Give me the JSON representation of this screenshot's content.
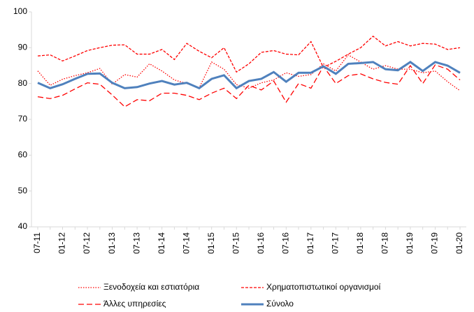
{
  "chart_data": {
    "type": "line",
    "categories": [
      "07-11",
      null,
      "01-12",
      null,
      "07-12",
      null,
      "01-13",
      null,
      "07-13",
      null,
      "01-14",
      null,
      "07-14",
      null,
      "01-15",
      null,
      "07-15",
      null,
      "01-16",
      null,
      "07-16",
      null,
      "01-17",
      null,
      "07-17",
      null,
      "01-18",
      null,
      "07-18",
      null,
      "01-19",
      null,
      "07-19",
      null,
      "01-20"
    ],
    "series": [
      {
        "name": "Ξενοδοχεία και εστιατόρια",
        "color": "#ff0000",
        "style": "dotted",
        "values": [
          83.5,
          79.5,
          81.2,
          82.2,
          83.0,
          84.2,
          79.8,
          82.5,
          81.8,
          85.5,
          83.5,
          81.0,
          80.0,
          78.8,
          86.0,
          84.0,
          79.7,
          78.7,
          80.2,
          81.0,
          83.0,
          82.0,
          82.5,
          85.5,
          83.5,
          88.0,
          86.0,
          84.0,
          85.0,
          84.0,
          84.0,
          83.0,
          83.5,
          80.5,
          78.0
        ]
      },
      {
        "name": "Χρηματοπιστωτικοί οργανισμοί",
        "color": "#ff0000",
        "style": "dashed",
        "values": [
          87.7,
          88.0,
          86.3,
          87.7,
          89.2,
          90.0,
          90.7,
          90.8,
          88.2,
          88.2,
          89.5,
          86.7,
          91.2,
          89.0,
          87.2,
          90.0,
          83.2,
          85.5,
          88.7,
          89.2,
          88.2,
          88.0,
          91.7,
          84.5,
          86.2,
          88.2,
          90.0,
          93.2,
          90.5,
          91.7,
          90.5,
          91.2,
          91.0,
          89.5,
          90.0
        ]
      },
      {
        "name": "Άλλες υπηρεσίες",
        "color": "#ff0000",
        "style": "longdash",
        "values": [
          76.3,
          75.8,
          76.7,
          78.5,
          80.2,
          79.8,
          76.8,
          73.5,
          75.5,
          75.2,
          77.3,
          77.3,
          76.7,
          75.5,
          77.3,
          78.7,
          75.8,
          79.5,
          78.2,
          80.7,
          74.8,
          80.0,
          78.7,
          84.8,
          80.0,
          82.2,
          82.7,
          81.3,
          80.3,
          79.8,
          85.0,
          80.0,
          85.2,
          84.0,
          81.0
        ]
      },
      {
        "name": "Σύνολο",
        "color": "#4f81bd",
        "style": "solid",
        "values": [
          80.2,
          78.7,
          79.8,
          81.3,
          82.7,
          82.8,
          80.2,
          78.7,
          79.0,
          80.0,
          80.7,
          79.7,
          80.2,
          78.7,
          81.3,
          82.3,
          78.7,
          80.7,
          81.3,
          83.2,
          80.5,
          83.0,
          83.0,
          84.8,
          82.7,
          85.5,
          85.7,
          86.0,
          84.0,
          83.7,
          86.0,
          83.5,
          86.0,
          85.0,
          83.0
        ]
      }
    ],
    "ylim": [
      40,
      100
    ],
    "yticks": [
      40,
      50,
      60,
      70,
      80,
      90,
      100
    ]
  }
}
